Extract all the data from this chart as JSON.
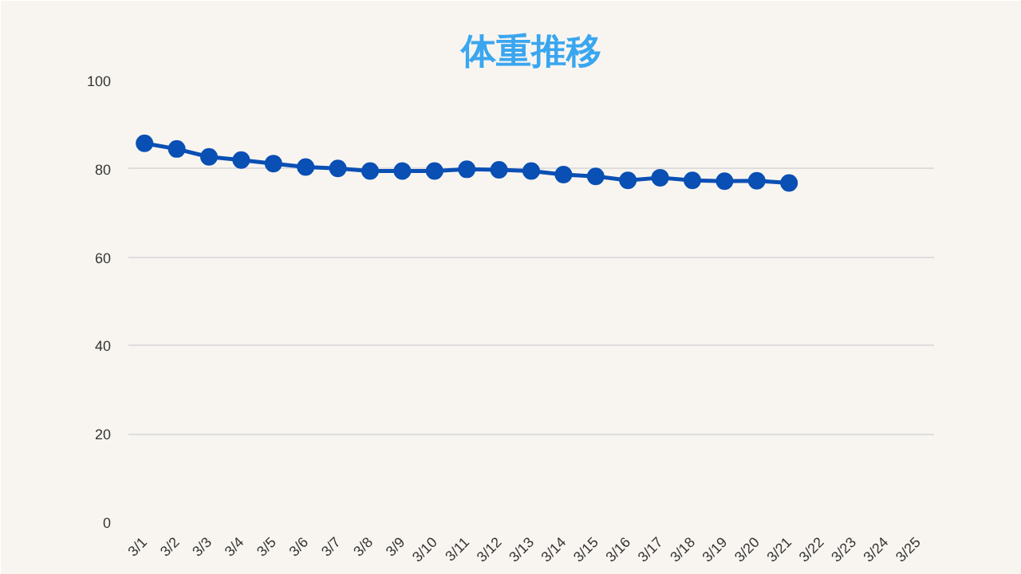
{
  "chart_data": {
    "type": "line",
    "title": "体重推移",
    "categories": [
      "3/1",
      "3/2",
      "3/3",
      "3/4",
      "3/5",
      "3/6",
      "3/7",
      "3/8",
      "3/9",
      "3/10",
      "3/11",
      "3/12",
      "3/13",
      "3/14",
      "3/15",
      "3/16",
      "3/17",
      "3/18",
      "3/19",
      "3/20",
      "3/21",
      "3/22",
      "3/23",
      "3/24",
      "3/25"
    ],
    "series": [
      {
        "color": "#0a4fb4",
        "values": [
          85.8,
          84.5,
          82.7,
          82.0,
          81.2,
          80.4,
          80.1,
          79.5,
          79.5,
          79.5,
          79.9,
          79.8,
          79.5,
          78.7,
          78.3,
          77.4,
          78.0,
          77.4,
          77.2,
          77.3,
          76.8,
          null,
          null,
          null,
          null
        ]
      }
    ],
    "ylim": [
      0,
      100
    ],
    "yticks": [
      0,
      20,
      40,
      60,
      80,
      100
    ],
    "grid": "y",
    "marker": "circle",
    "line_style": "solid"
  }
}
